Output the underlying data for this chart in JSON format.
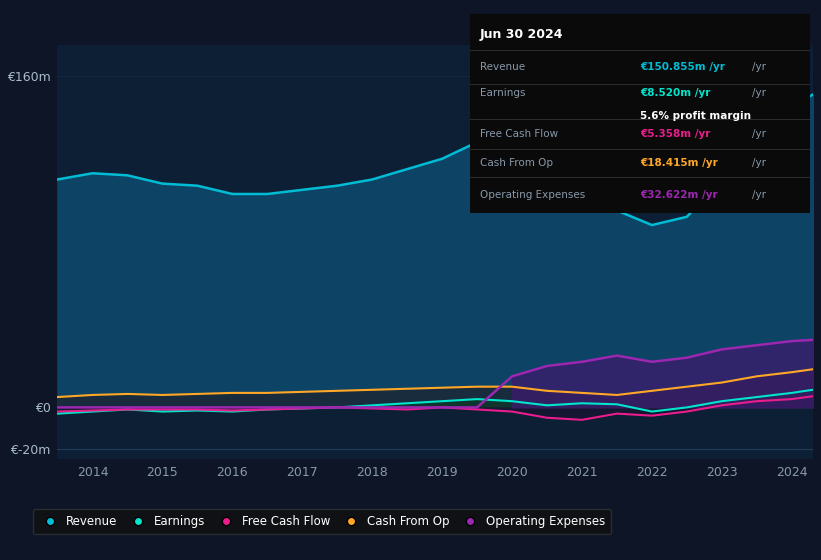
{
  "years": [
    2013.5,
    2014,
    2014.5,
    2015,
    2015.5,
    2016,
    2016.5,
    2017,
    2017.5,
    2018,
    2018.5,
    2019,
    2019.5,
    2020,
    2020.5,
    2021,
    2021.5,
    2022,
    2022.5,
    2023,
    2023.5,
    2024,
    2024.3
  ],
  "revenue": [
    110,
    113,
    112,
    108,
    107,
    103,
    103,
    105,
    107,
    110,
    115,
    120,
    128,
    130,
    115,
    100,
    95,
    88,
    92,
    110,
    125,
    145,
    151
  ],
  "earnings": [
    -3,
    -2,
    -1,
    -2,
    -1.5,
    -2,
    -1,
    -0.5,
    0,
    1,
    2,
    3,
    4,
    3,
    1,
    2,
    1.5,
    -2,
    0,
    3,
    5,
    7,
    8.5
  ],
  "free_cash_flow": [
    -2,
    -1.5,
    -1,
    -1,
    -1,
    -1.5,
    -1,
    -0.5,
    0,
    -0.5,
    -1,
    0,
    -1,
    -2,
    -5,
    -6,
    -3,
    -4,
    -2,
    1,
    3,
    4,
    5.4
  ],
  "cash_from_op": [
    5,
    6,
    6.5,
    6,
    6.5,
    7,
    7,
    7.5,
    8,
    8.5,
    9,
    9.5,
    10,
    10,
    8,
    7,
    6,
    8,
    10,
    12,
    15,
    17,
    18.4
  ],
  "operating_expenses": [
    0,
    0,
    0,
    0,
    0,
    0,
    0,
    0,
    0,
    0,
    0,
    0,
    0,
    15,
    20,
    22,
    25,
    22,
    24,
    28,
    30,
    32,
    32.6
  ],
  "bg_color": "#0d1526",
  "plot_bg_color": "#0d1f35",
  "revenue_color": "#00bcd4",
  "earnings_color": "#00e5cc",
  "fcf_color": "#e91e8c",
  "cashop_color": "#ffa726",
  "opex_color": "#9c27b0",
  "revenue_fill": "#0d4a6e",
  "cashop_fill": "#1a2a3a",
  "earnings_fill": "#0d3a2a",
  "fcf_fill": "#1a1030",
  "opex_fill": "#3d1a6e",
  "grid_color": "#1e3a5f",
  "text_color": "#8899aa",
  "title_text": "Jun 30 2024",
  "info_revenue": "€150.855m /yr",
  "info_earnings": "€8.520m /yr",
  "info_margin": "5.6% profit margin",
  "info_fcf": "€5.358m /yr",
  "info_cashop": "€18.415m /yr",
  "info_opex": "€32.622m /yr",
  "ylim_min": -25,
  "ylim_max": 175,
  "yticks": [
    -20,
    0,
    160
  ],
  "ytick_labels": [
    "€-20m",
    "€0",
    "€160m"
  ],
  "xticks": [
    2014,
    2015,
    2016,
    2017,
    2018,
    2019,
    2020,
    2021,
    2022,
    2023,
    2024
  ],
  "legend_labels": [
    "Revenue",
    "Earnings",
    "Free Cash Flow",
    "Cash From Op",
    "Operating Expenses"
  ],
  "legend_colors": [
    "#00bcd4",
    "#00e5cc",
    "#e91e8c",
    "#ffa726",
    "#9c27b0"
  ]
}
